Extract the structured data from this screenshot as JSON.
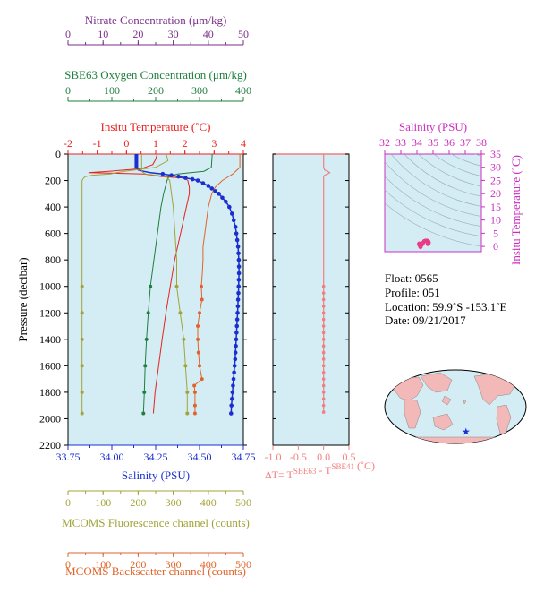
{
  "colors": {
    "nitrate": "#7a2f8a",
    "oxygen": "#1f7f3f",
    "temperature": "#e8211e",
    "salinity": "#1b2fcf",
    "fluorescence": "#a3a33a",
    "backscatter": "#e0642a",
    "delta": "#f07f7f",
    "ts": "#cc2fc0",
    "ts_points": "#ea3b86",
    "panel_bg": "#d4ecf4",
    "ts_bg": "#d4ecf4",
    "land": "#f3b8b8",
    "ocean": "#d4ecf4"
  },
  "chart_data": [
    {
      "type": "line",
      "id": "profiles",
      "y_axis": {
        "label": "Pressure (decibar)",
        "ylim": [
          2200,
          0
        ],
        "ticks": [
          0,
          200,
          400,
          600,
          800,
          1000,
          1200,
          1400,
          1600,
          1800,
          2000,
          2200
        ],
        "inverted": true
      },
      "x_axes": [
        {
          "key": "nitrate",
          "label": "Nitrate Concentration (μm/kg)",
          "range": [
            0,
            50
          ],
          "ticks": [
            0,
            10,
            20,
            30,
            40,
            50
          ]
        },
        {
          "key": "oxygen",
          "label": "SBE63 Oxygen Concentration (μm/kg)",
          "range": [
            0,
            400
          ],
          "ticks": [
            0,
            100,
            200,
            300,
            400
          ]
        },
        {
          "key": "temperature",
          "label": "Insitu Temperature (˚C)",
          "range": [
            -2,
            4
          ],
          "ticks": [
            -2,
            -1,
            0,
            1,
            2,
            3,
            4
          ]
        },
        {
          "key": "salinity",
          "label": "Salinity (PSU)",
          "range": [
            33.75,
            34.75
          ],
          "ticks": [
            "33.75",
            "34.00",
            "34.25",
            "34.50",
            "34.75"
          ]
        },
        {
          "key": "fluorescence",
          "label": "MCOMS Fluorescence channel (counts)",
          "range": [
            0,
            500
          ],
          "ticks": [
            0,
            100,
            200,
            300,
            400,
            500
          ]
        },
        {
          "key": "backscatter",
          "label": "MCOMS Backscatter channel (counts)",
          "range": [
            0,
            500
          ],
          "ticks": [
            0,
            100,
            200,
            300,
            400,
            500
          ]
        }
      ],
      "series": [
        {
          "name": "Insitu Temperature",
          "key": "temperature",
          "p": [
            0,
            40,
            80,
            110,
            130,
            140,
            150,
            160,
            170,
            180,
            190,
            200,
            250,
            300,
            400,
            600,
            800,
            1000,
            1200,
            1400,
            1600,
            1800,
            1960
          ],
          "v": [
            1.05,
            1.0,
            0.9,
            0.5,
            -0.6,
            -1.3,
            0.6,
            0.9,
            1.2,
            1.9,
            2.05,
            2.1,
            2.15,
            2.15,
            2.05,
            1.85,
            1.65,
            1.5,
            1.35,
            1.22,
            1.1,
            0.98,
            0.92
          ]
        },
        {
          "name": "Salinity",
          "key": "salinity",
          "p": [
            0,
            20,
            40,
            60,
            80,
            100,
            120,
            130,
            140,
            150,
            160,
            170,
            180,
            190,
            200,
            220,
            240,
            260,
            280,
            300,
            330,
            360,
            400,
            450,
            500,
            550,
            600,
            650,
            700,
            750,
            800,
            850,
            900,
            950,
            1000,
            1050,
            1100,
            1150,
            1200,
            1250,
            1300,
            1350,
            1400,
            1450,
            1500,
            1550,
            1600,
            1650,
            1700,
            1750,
            1800,
            1850,
            1900,
            1960
          ],
          "v": [
            34.14,
            34.14,
            34.14,
            34.14,
            34.14,
            34.14,
            34.15,
            34.18,
            34.22,
            34.29,
            34.34,
            34.38,
            34.42,
            34.46,
            34.49,
            34.52,
            34.55,
            34.57,
            34.59,
            34.61,
            34.63,
            34.65,
            34.67,
            34.685,
            34.695,
            34.705,
            34.71,
            34.715,
            34.72,
            34.722,
            34.724,
            34.725,
            34.725,
            34.724,
            34.723,
            34.722,
            34.72,
            34.719,
            34.717,
            34.715,
            34.713,
            34.711,
            34.709,
            34.707,
            34.705,
            34.703,
            34.7,
            34.697,
            34.694,
            34.691,
            34.688,
            34.685,
            34.682,
            34.68
          ]
        },
        {
          "name": "SBE63 Oxygen Concentration",
          "key": "oxygen",
          "p": [
            0,
            100,
            130,
            150,
            170,
            200,
            300,
            400,
            600,
            800,
            1000,
            1200,
            1400,
            1600,
            1800,
            1960
          ],
          "v": [
            329,
            327,
            310,
            250,
            230,
            226,
            218,
            212,
            204,
            196,
            188,
            183,
            179,
            176,
            174,
            172
          ]
        },
        {
          "name": "Nitrate Concentration",
          "key": "nitrate",
          "p": [
            0,
            130,
            150,
            170,
            200,
            400,
            600,
            800,
            1000,
            1200,
            1400,
            1600,
            1800,
            1960
          ],
          "v": [
            21,
            21,
            22,
            28,
            29,
            30,
            30.5,
            31,
            31,
            32,
            33,
            33.5,
            34,
            34
          ]
        },
        {
          "name": "MCOMS Fluorescence channel",
          "key": "fluorescence",
          "p": [
            0,
            50,
            100,
            130,
            150,
            160,
            170,
            180,
            200,
            300,
            500,
            700,
            1000,
            1200,
            1400,
            1600,
            1800,
            1960
          ],
          "v": [
            280,
            285,
            250,
            160,
            120,
            70,
            50,
            45,
            40,
            40,
            40,
            40,
            40,
            40,
            40,
            40,
            40,
            40
          ]
        },
        {
          "name": "MCOMS Backscatter channel",
          "key": "backscatter",
          "p": [
            0,
            100,
            150,
            200,
            250,
            300,
            400,
            500,
            600,
            700,
            800,
            900,
            1000,
            1100,
            1200,
            1300,
            1400,
            1500,
            1600,
            1700,
            1750,
            1800,
            1900,
            1960
          ],
          "v": [
            490,
            490,
            470,
            440,
            420,
            410,
            400,
            395,
            390,
            385,
            385,
            383,
            380,
            382,
            375,
            370,
            370,
            372,
            375,
            382,
            360,
            362,
            362,
            362
          ]
        }
      ]
    },
    {
      "type": "line",
      "id": "delta",
      "xlabel": "ΔT= T",
      "xlabel_sup1": "SBE63",
      "xlabel_mid": " - T",
      "xlabel_sup2": "SBE41",
      "xlabel_unit": " (˚C)",
      "xlim": [
        -1.0,
        0.5
      ],
      "x_ticks": [
        "-1.0",
        "-0.5",
        "0.0",
        "0.5"
      ],
      "ylim": [
        2200,
        0
      ],
      "p": [
        0,
        60,
        100,
        120,
        130,
        140,
        150,
        160,
        170,
        180,
        200,
        250,
        300,
        400,
        600,
        800,
        1000,
        1050,
        1100,
        1150,
        1200,
        1250,
        1300,
        1350,
        1400,
        1450,
        1500,
        1550,
        1600,
        1650,
        1700,
        1750,
        1800,
        1850,
        1900,
        1950
      ],
      "v": [
        0.0,
        0.0,
        0.0,
        0.02,
        0.08,
        0.12,
        0.08,
        0.02,
        0.0,
        0.0,
        0.0,
        0.0,
        0.0,
        0.0,
        0.0,
        0.0,
        0.0,
        0.0,
        0.0,
        0.0,
        0.0,
        0.0,
        0.0,
        0.0,
        0.0,
        0.0,
        0.0,
        0.0,
        0.0,
        0.0,
        0.0,
        0.0,
        0.0,
        0.0,
        0.0,
        0.0
      ],
      "dots_from": 1000
    },
    {
      "type": "scatter",
      "id": "ts",
      "xlabel": "Salinity (PSU)",
      "ylabel": "Insitu Temperature (˚C)",
      "xlim": [
        32,
        38
      ],
      "ylim": [
        -2,
        35
      ],
      "x_ticks": [
        32,
        33,
        34,
        35,
        36,
        37,
        38
      ],
      "y_ticks": [
        0,
        5,
        10,
        15,
        20,
        25,
        30,
        35
      ],
      "points": [
        [
          34.14,
          1.0
        ],
        [
          34.18,
          0.9
        ],
        [
          34.22,
          -0.2
        ],
        [
          34.29,
          0.6
        ],
        [
          34.38,
          1.4
        ],
        [
          34.46,
          2.0
        ],
        [
          34.52,
          2.1
        ],
        [
          34.57,
          2.15
        ],
        [
          34.61,
          2.1
        ],
        [
          34.65,
          2.05
        ],
        [
          34.68,
          1.9
        ],
        [
          34.7,
          1.8
        ],
        [
          34.72,
          1.6
        ],
        [
          34.72,
          1.4
        ],
        [
          34.71,
          1.2
        ],
        [
          34.7,
          1.1
        ],
        [
          34.69,
          1.0
        ],
        [
          34.68,
          0.92
        ],
        [
          34.15,
          1.05
        ],
        [
          34.16,
          0.5
        ]
      ]
    }
  ],
  "info": {
    "float": "Float:  0565",
    "profile": "Profile:  051",
    "location": "Location:  59.9˚S  -153.1˚E",
    "date": "Date:  09/21/2017"
  },
  "map": {
    "marker": {
      "lon": -153.1,
      "lat": -59.9
    }
  }
}
